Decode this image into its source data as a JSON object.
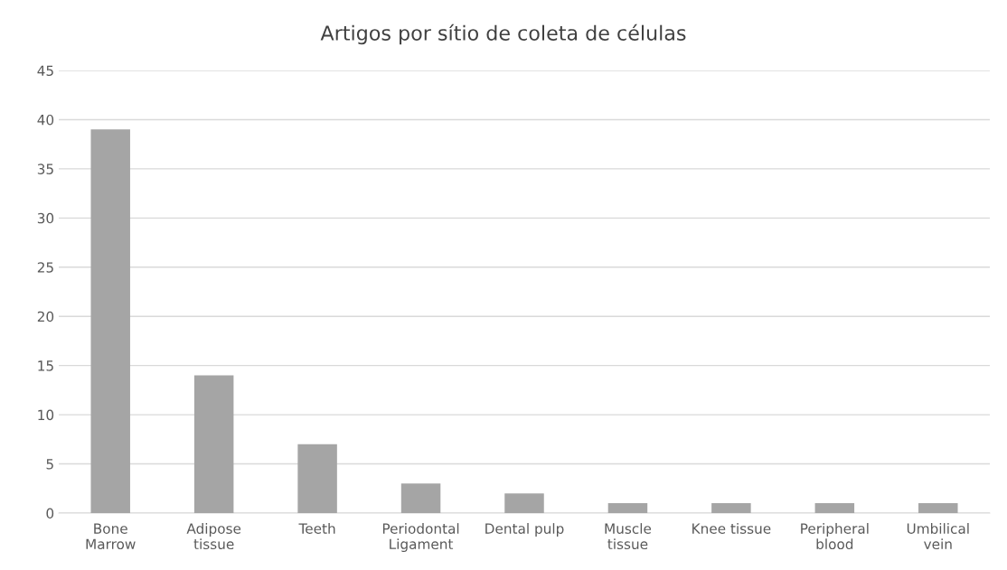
{
  "chart_data": {
    "type": "bar",
    "title": "Artigos por sítio de coleta de células",
    "categories": [
      "Bone\nMarrow",
      "Adipose\ntissue",
      "Teeth",
      "Periodontal\nLigament",
      "Dental pulp",
      "Muscle\ntissue",
      "Knee tissue",
      "Peripheral\nblood",
      "Umbilical\nvein"
    ],
    "values": [
      39,
      14,
      7,
      3,
      2,
      1,
      1,
      1,
      1
    ],
    "color": "#a5a5a5",
    "ylim": [
      0,
      45
    ],
    "yticks": [
      0,
      5,
      10,
      15,
      20,
      25,
      30,
      35,
      40,
      45
    ],
    "grid": "y",
    "legend": false
  }
}
